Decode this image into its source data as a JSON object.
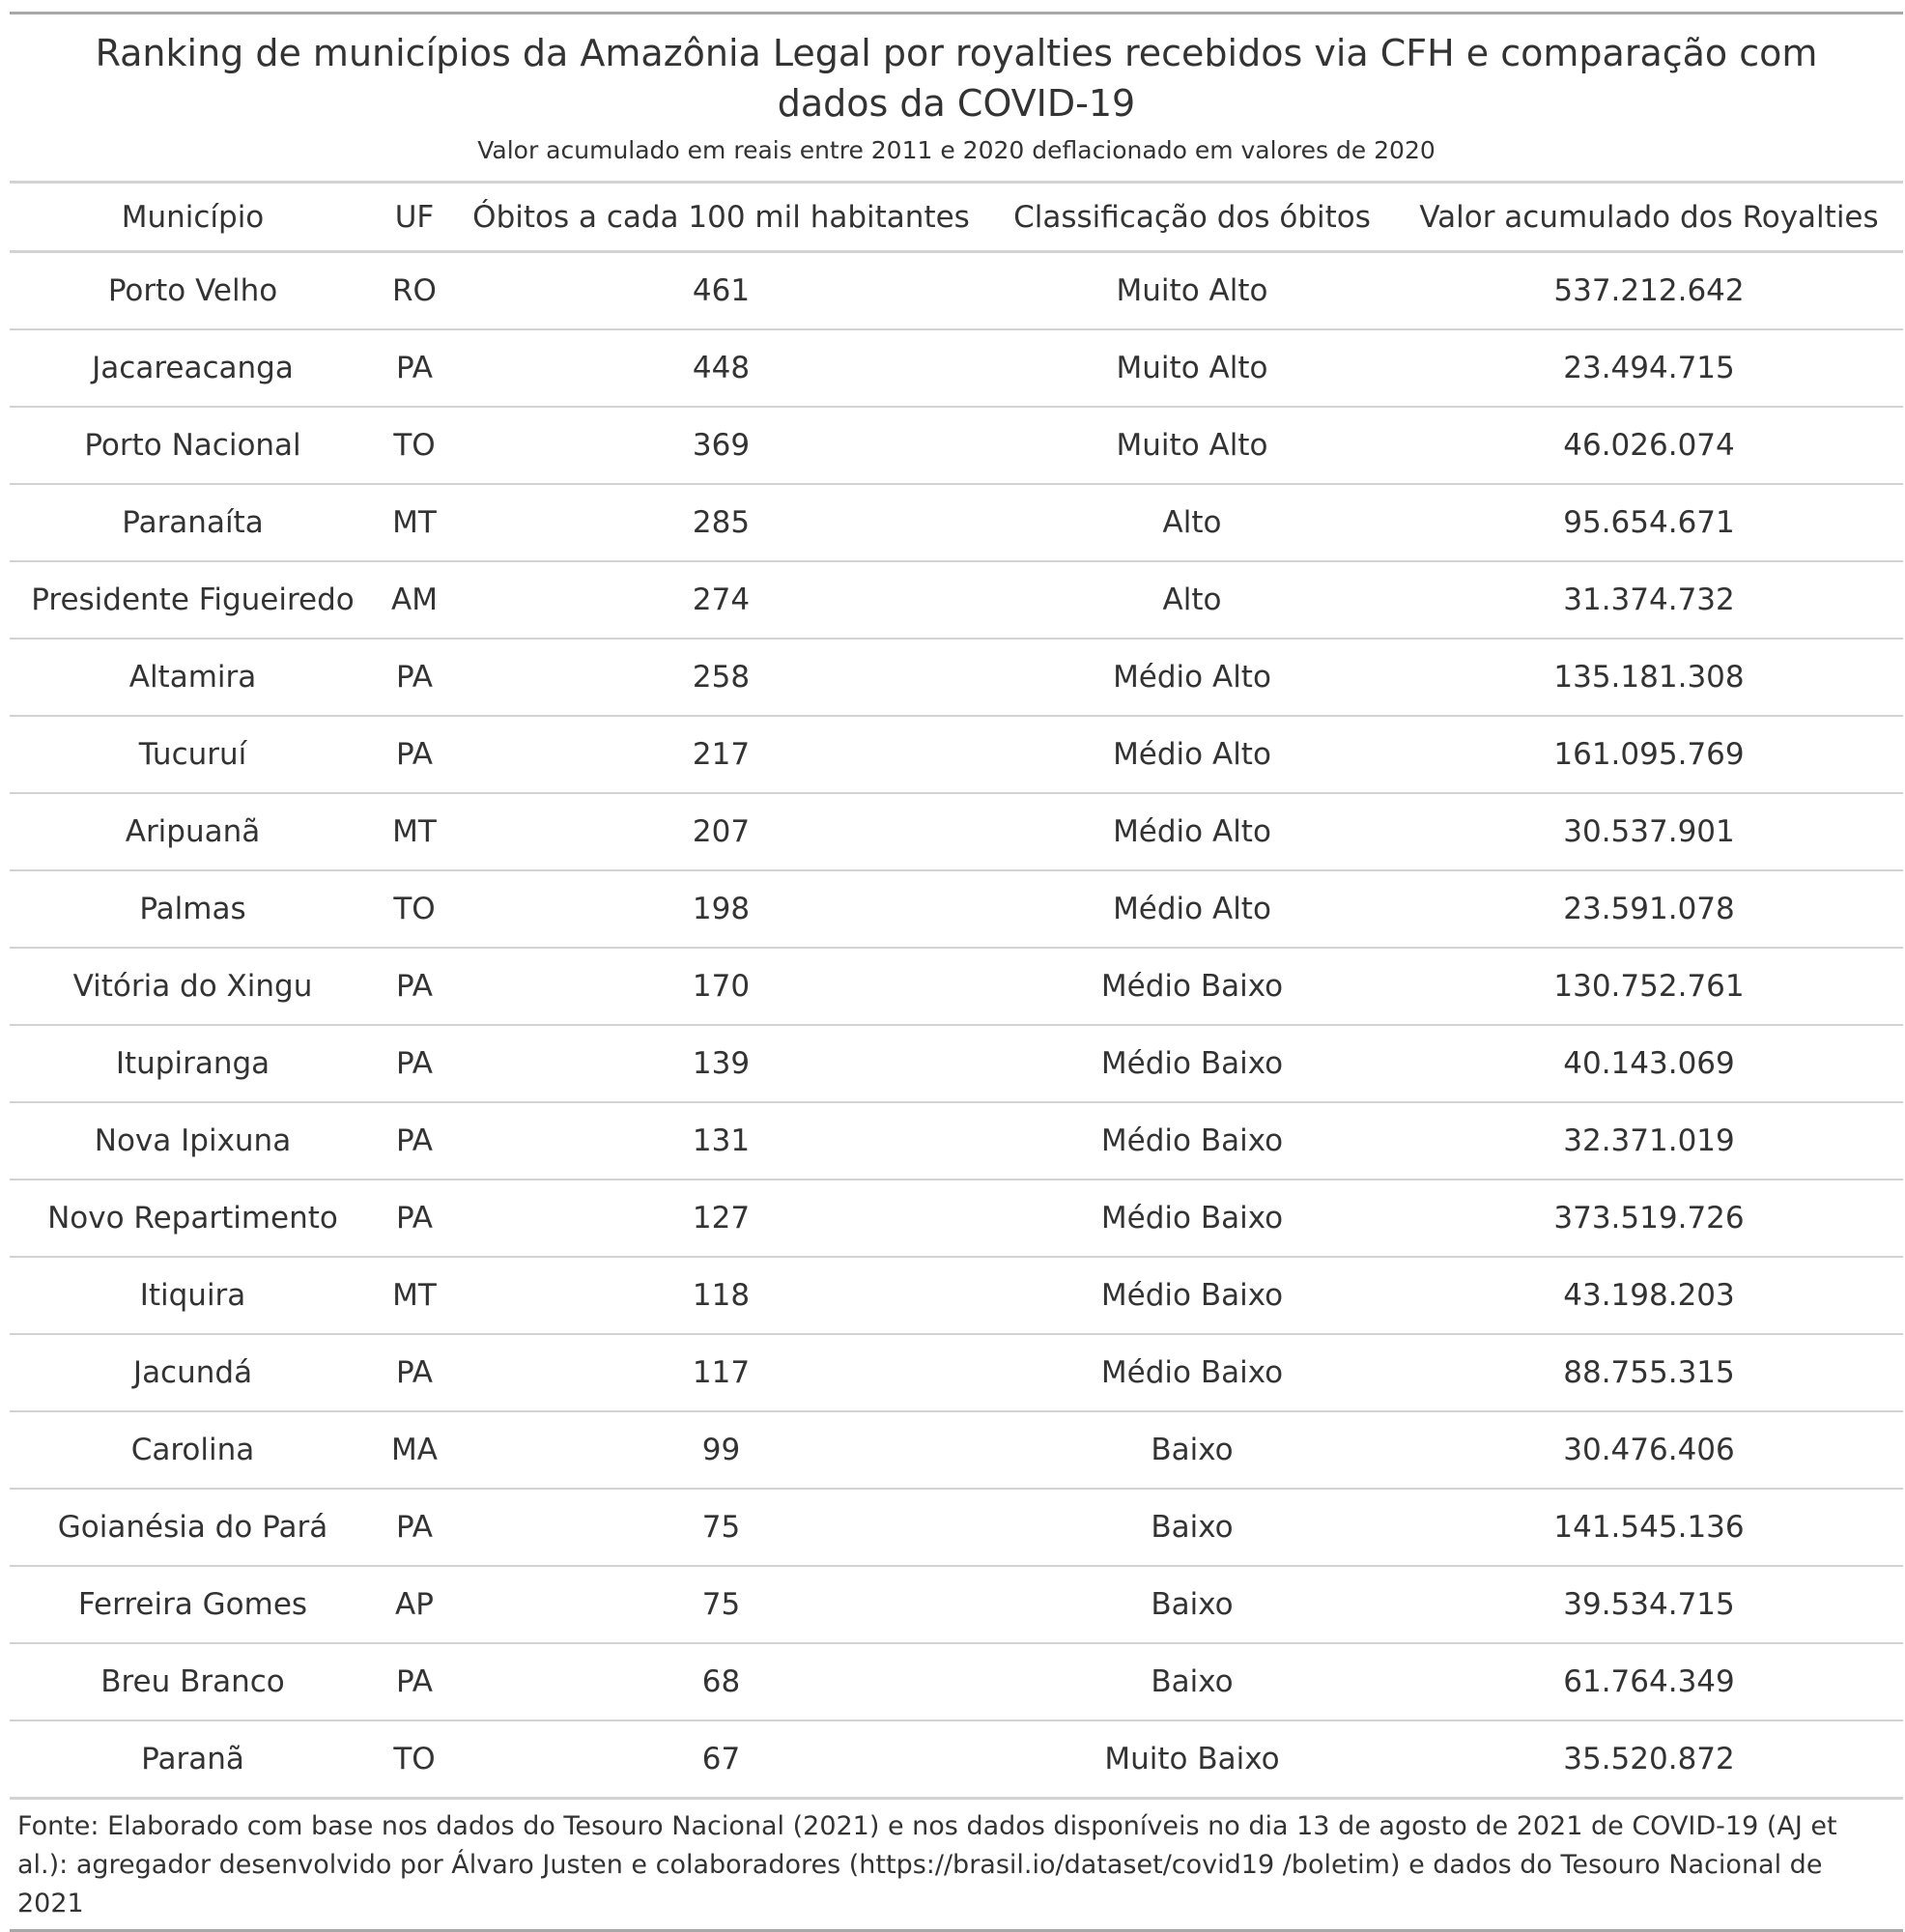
{
  "title": "Ranking de municípios da Amazônia Legal por royalties recebidos via CFH e comparação com dados da COVID-19",
  "subtitle": "Valor acumulado em reais entre 2011 e 2020 deflacionado em valores de 2020",
  "columns": {
    "municipio": "Município",
    "uf": "UF",
    "obitos": "Óbitos a cada 100 mil habitantes",
    "classificacao": "Classificação dos óbitos",
    "valor": "Valor acumulado dos Royalties"
  },
  "rows": [
    {
      "municipio": "Porto Velho",
      "uf": "RO",
      "obitos": "461",
      "classificacao": "Muito Alto",
      "valor": "537.212.642"
    },
    {
      "municipio": "Jacareacanga",
      "uf": "PA",
      "obitos": "448",
      "classificacao": "Muito Alto",
      "valor": "23.494.715"
    },
    {
      "municipio": "Porto Nacional",
      "uf": "TO",
      "obitos": "369",
      "classificacao": "Muito Alto",
      "valor": "46.026.074"
    },
    {
      "municipio": "Paranaíta",
      "uf": "MT",
      "obitos": "285",
      "classificacao": "Alto",
      "valor": "95.654.671"
    },
    {
      "municipio": "Presidente Figueiredo",
      "uf": "AM",
      "obitos": "274",
      "classificacao": "Alto",
      "valor": "31.374.732"
    },
    {
      "municipio": "Altamira",
      "uf": "PA",
      "obitos": "258",
      "classificacao": "Médio Alto",
      "valor": "135.181.308"
    },
    {
      "municipio": "Tucuruí",
      "uf": "PA",
      "obitos": "217",
      "classificacao": "Médio Alto",
      "valor": "161.095.769"
    },
    {
      "municipio": "Aripuanã",
      "uf": "MT",
      "obitos": "207",
      "classificacao": "Médio Alto",
      "valor": "30.537.901"
    },
    {
      "municipio": "Palmas",
      "uf": "TO",
      "obitos": "198",
      "classificacao": "Médio Alto",
      "valor": "23.591.078"
    },
    {
      "municipio": "Vitória do Xingu",
      "uf": "PA",
      "obitos": "170",
      "classificacao": "Médio Baixo",
      "valor": "130.752.761"
    },
    {
      "municipio": "Itupiranga",
      "uf": "PA",
      "obitos": "139",
      "classificacao": "Médio Baixo",
      "valor": "40.143.069"
    },
    {
      "municipio": "Nova Ipixuna",
      "uf": "PA",
      "obitos": "131",
      "classificacao": "Médio Baixo",
      "valor": "32.371.019"
    },
    {
      "municipio": "Novo Repartimento",
      "uf": "PA",
      "obitos": "127",
      "classificacao": "Médio Baixo",
      "valor": "373.519.726"
    },
    {
      "municipio": "Itiquira",
      "uf": "MT",
      "obitos": "118",
      "classificacao": "Médio Baixo",
      "valor": "43.198.203"
    },
    {
      "municipio": "Jacundá",
      "uf": "PA",
      "obitos": "117",
      "classificacao": "Médio Baixo",
      "valor": "88.755.315"
    },
    {
      "municipio": "Carolina",
      "uf": "MA",
      "obitos": "99",
      "classificacao": "Baixo",
      "valor": "30.476.406"
    },
    {
      "municipio": "Goianésia do Pará",
      "uf": "PA",
      "obitos": "75",
      "classificacao": "Baixo",
      "valor": "141.545.136"
    },
    {
      "municipio": "Ferreira Gomes",
      "uf": "AP",
      "obitos": "75",
      "classificacao": "Baixo",
      "valor": "39.534.715"
    },
    {
      "municipio": "Breu Branco",
      "uf": "PA",
      "obitos": "68",
      "classificacao": "Baixo",
      "valor": "61.764.349"
    },
    {
      "municipio": "Paranã",
      "uf": "TO",
      "obitos": "67",
      "classificacao": "Muito Baixo",
      "valor": "35.520.872"
    }
  ],
  "source_note": "Fonte: Elaborado com base nos dados do Tesouro Nacional (2021) e nos dados disponíveis no dia 13 de agosto de 2021 de COVID-19 (AJ et al.): agregador desenvolvido por Álvaro Justen e colaboradores (https://brasil.io/dataset/covid19 /boletim) e dados do Tesouro Nacional de 2021"
}
